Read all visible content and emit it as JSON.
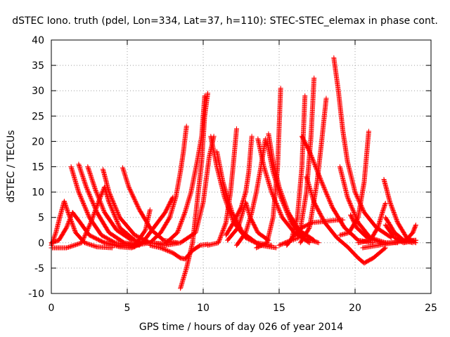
{
  "chart_data": {
    "type": "scatter",
    "title": "dSTEC Iono. truth (pdel, Lon=334, Lat=37, h=110): STEC-STEC_elemax in phase cont.",
    "xlabel": "GPS time / hours of day 026 of year 2014",
    "ylabel": "dSTEC  / TECUs",
    "xlim": [
      0,
      25
    ],
    "ylim": [
      -10,
      40
    ],
    "xticks": [
      0,
      5,
      10,
      15,
      20,
      25
    ],
    "yticks": [
      -10,
      -5,
      0,
      5,
      10,
      15,
      20,
      25,
      30,
      35,
      40
    ],
    "grid": true,
    "marker": "+",
    "color": "#ff0000",
    "series": [
      {
        "points": [
          [
            0.0,
            -0.5
          ],
          [
            0.3,
            2
          ],
          [
            0.6,
            5.5
          ],
          [
            0.85,
            8.2
          ],
          [
            1.1,
            6
          ],
          [
            1.6,
            2
          ],
          [
            2.2,
            0
          ],
          [
            3.0,
            -0.8
          ],
          [
            4.0,
            -1
          ]
        ]
      },
      {
        "points": [
          [
            0.0,
            0
          ],
          [
            0.5,
            0.5
          ],
          [
            1.0,
            3
          ],
          [
            1.4,
            6
          ],
          [
            1.9,
            4
          ],
          [
            2.5,
            1.5
          ],
          [
            3.5,
            0
          ],
          [
            4.5,
            -0.5
          ],
          [
            5.5,
            -0.8
          ]
        ]
      },
      {
        "points": [
          [
            0.0,
            -1
          ],
          [
            1.0,
            -1
          ],
          [
            2.0,
            0
          ],
          [
            2.6,
            4
          ],
          [
            3.1,
            8
          ],
          [
            3.5,
            11
          ],
          [
            3.8,
            8
          ],
          [
            4.5,
            3
          ],
          [
            5.5,
            0.5
          ]
        ]
      },
      {
        "points": [
          [
            1.3,
            15
          ],
          [
            1.8,
            10
          ],
          [
            2.5,
            5
          ],
          [
            3.3,
            1.5
          ],
          [
            4.2,
            0
          ],
          [
            5.0,
            -0.3
          ],
          [
            6.0,
            0
          ]
        ]
      },
      {
        "points": [
          [
            1.8,
            15.5
          ],
          [
            2.3,
            11
          ],
          [
            3.0,
            6
          ],
          [
            3.8,
            2
          ],
          [
            4.8,
            0
          ],
          [
            5.8,
            -0.5
          ]
        ]
      },
      {
        "points": [
          [
            2.4,
            15
          ],
          [
            2.9,
            10.5
          ],
          [
            3.5,
            6
          ],
          [
            4.3,
            2.5
          ],
          [
            5.3,
            0.5
          ],
          [
            6.3,
            0
          ]
        ]
      },
      {
        "points": [
          [
            3.4,
            14.5
          ],
          [
            3.8,
            10
          ],
          [
            4.5,
            5
          ],
          [
            5.5,
            1.5
          ],
          [
            6.5,
            0
          ],
          [
            7.5,
            -0.5
          ]
        ]
      },
      {
        "points": [
          [
            4.7,
            14.8
          ],
          [
            5.1,
            11
          ],
          [
            5.8,
            6.5
          ],
          [
            6.6,
            2.5
          ],
          [
            7.4,
            0.5
          ],
          [
            8.3,
            0
          ]
        ]
      },
      {
        "points": [
          [
            3.5,
            0
          ],
          [
            4.5,
            -0.8
          ],
          [
            5.3,
            -1
          ],
          [
            6.0,
            0
          ],
          [
            6.5,
            2
          ],
          [
            7.0,
            4
          ],
          [
            7.5,
            6
          ],
          [
            8.0,
            9
          ]
        ]
      },
      {
        "points": [
          [
            4.5,
            -0.5
          ],
          [
            5.5,
            -0.5
          ],
          [
            6.2,
            2.5
          ],
          [
            6.5,
            6.5
          ]
        ]
      },
      {
        "points": [
          [
            5.5,
            -0.5
          ],
          [
            6.5,
            0
          ],
          [
            7.2,
            2
          ],
          [
            7.8,
            5
          ],
          [
            8.2,
            9
          ],
          [
            8.5,
            14
          ],
          [
            8.7,
            18
          ],
          [
            8.9,
            23
          ]
        ]
      },
      {
        "points": [
          [
            6.5,
            0
          ],
          [
            7.5,
            -0.2
          ],
          [
            8.3,
            2
          ],
          [
            8.8,
            6
          ],
          [
            9.2,
            10
          ],
          [
            9.6,
            16
          ],
          [
            9.9,
            21
          ],
          [
            10.1,
            29
          ]
        ]
      },
      {
        "points": [
          [
            6.5,
            -0.5
          ],
          [
            7.2,
            -1
          ],
          [
            8.0,
            -2
          ],
          [
            8.5,
            -3
          ],
          [
            8.8,
            -3.2
          ],
          [
            9.3,
            -1.5
          ],
          [
            9.8,
            -0.5
          ],
          [
            10.3,
            -0.3
          ]
        ]
      },
      {
        "points": [
          [
            8.5,
            -9
          ],
          [
            8.9,
            -5
          ],
          [
            9.3,
            0
          ],
          [
            9.6,
            8
          ],
          [
            9.9,
            16
          ],
          [
            10.1,
            25
          ],
          [
            10.3,
            29.5
          ]
        ]
      },
      {
        "points": [
          [
            7.5,
            -0.5
          ],
          [
            8.5,
            0
          ],
          [
            9.5,
            2
          ],
          [
            10.0,
            8
          ],
          [
            10.4,
            17
          ],
          [
            10.7,
            21
          ]
        ]
      },
      {
        "points": [
          [
            10.5,
            21
          ],
          [
            10.9,
            15
          ],
          [
            11.4,
            9
          ],
          [
            12.0,
            4
          ],
          [
            12.8,
            1
          ],
          [
            13.8,
            -0.5
          ],
          [
            14.8,
            -1
          ]
        ]
      },
      {
        "points": [
          [
            10.9,
            18
          ],
          [
            11.3,
            12
          ],
          [
            11.9,
            6
          ],
          [
            12.6,
            2
          ],
          [
            13.5,
            0
          ],
          [
            14.5,
            -0.5
          ]
        ]
      },
      {
        "points": [
          [
            10.3,
            -0.5
          ],
          [
            11.0,
            0
          ],
          [
            11.5,
            4
          ],
          [
            11.8,
            10
          ],
          [
            12.0,
            16
          ],
          [
            12.2,
            22.5
          ]
        ]
      },
      {
        "points": [
          [
            12.2,
            -0.5
          ],
          [
            12.8,
            2
          ],
          [
            13.2,
            6
          ],
          [
            13.5,
            10
          ],
          [
            13.8,
            15
          ],
          [
            14.1,
            20.5
          ]
        ]
      },
      {
        "points": [
          [
            11.5,
            1.5
          ],
          [
            12.0,
            4
          ],
          [
            12.5,
            7
          ],
          [
            12.8,
            10
          ],
          [
            13.0,
            14
          ],
          [
            13.2,
            21
          ]
        ]
      },
      {
        "points": [
          [
            11.6,
            0.5
          ],
          [
            12.3,
            3
          ],
          [
            12.8,
            8
          ],
          [
            13.1,
            5
          ],
          [
            13.6,
            2
          ],
          [
            14.3,
            0.5
          ]
        ]
      },
      {
        "points": [
          [
            13.6,
            20.5
          ],
          [
            14.0,
            15
          ],
          [
            14.5,
            10
          ],
          [
            15.2,
            5
          ],
          [
            16.0,
            2
          ],
          [
            17.0,
            0
          ]
        ]
      },
      {
        "points": [
          [
            14.3,
            21.5
          ],
          [
            14.6,
            16
          ],
          [
            15.0,
            11
          ],
          [
            15.6,
            6
          ],
          [
            16.3,
            2.5
          ],
          [
            17.3,
            0.5
          ]
        ]
      },
      {
        "points": [
          [
            14.2,
            20
          ],
          [
            14.6,
            14
          ],
          [
            15.1,
            9
          ],
          [
            15.8,
            4
          ],
          [
            16.6,
            1
          ],
          [
            17.6,
            0
          ]
        ]
      },
      {
        "points": [
          [
            13.5,
            -1
          ],
          [
            14.2,
            0
          ],
          [
            14.6,
            5
          ],
          [
            14.9,
            15
          ],
          [
            15.1,
            30.5
          ]
        ]
      },
      {
        "points": [
          [
            15.0,
            -0.5
          ],
          [
            15.8,
            0.5
          ],
          [
            16.2,
            5
          ],
          [
            16.5,
            15
          ],
          [
            16.7,
            29
          ]
        ]
      },
      {
        "points": [
          [
            15.4,
            0
          ],
          [
            16.3,
            1
          ],
          [
            16.8,
            10
          ],
          [
            17.1,
            21
          ],
          [
            17.3,
            32.5
          ]
        ]
      },
      {
        "points": [
          [
            16.4,
            0
          ],
          [
            17.0,
            3
          ],
          [
            17.5,
            12
          ],
          [
            17.8,
            20
          ],
          [
            18.1,
            28.5
          ]
        ]
      },
      {
        "points": [
          [
            16.5,
            21
          ],
          [
            17.0,
            18
          ],
          [
            17.8,
            12
          ],
          [
            18.5,
            7
          ],
          [
            19.3,
            3
          ],
          [
            20.2,
            0.5
          ],
          [
            21.2,
            0
          ]
        ]
      },
      {
        "points": [
          [
            15.5,
            -0.5
          ],
          [
            16.0,
            1.5
          ],
          [
            16.5,
            3
          ],
          [
            17.2,
            4
          ],
          [
            18.0,
            4.2
          ],
          [
            18.8,
            4.5
          ],
          [
            19.2,
            4.5
          ]
        ]
      },
      {
        "points": [
          [
            18.6,
            36.5
          ],
          [
            18.9,
            30
          ],
          [
            19.2,
            22
          ],
          [
            19.5,
            16
          ],
          [
            20.0,
            10
          ],
          [
            20.6,
            6
          ],
          [
            21.4,
            3
          ],
          [
            22.4,
            1
          ]
        ]
      },
      {
        "points": [
          [
            19.0,
            15
          ],
          [
            19.5,
            9
          ],
          [
            20.2,
            4
          ],
          [
            21.0,
            1
          ],
          [
            22.0,
            0
          ]
        ]
      },
      {
        "points": [
          [
            16.8,
            13
          ],
          [
            17.3,
            8
          ],
          [
            18.0,
            4
          ],
          [
            18.8,
            1
          ],
          [
            19.5,
            -0.8
          ],
          [
            20.2,
            -3
          ],
          [
            20.6,
            -4
          ],
          [
            21.2,
            -3
          ],
          [
            22.0,
            -1
          ]
        ]
      },
      {
        "points": [
          [
            19.0,
            1.5
          ],
          [
            19.6,
            2
          ],
          [
            20.2,
            5
          ],
          [
            20.6,
            12
          ],
          [
            20.9,
            22
          ]
        ]
      },
      {
        "points": [
          [
            19.7,
            5.5
          ],
          [
            20.1,
            3
          ],
          [
            20.8,
            1
          ],
          [
            21.8,
            0
          ],
          [
            22.8,
            0
          ]
        ]
      },
      {
        "points": [
          [
            21.9,
            12.5
          ],
          [
            22.3,
            8
          ],
          [
            22.8,
            4
          ],
          [
            23.4,
            1
          ],
          [
            24.0,
            0
          ]
        ]
      },
      {
        "points": [
          [
            20.2,
            0
          ],
          [
            21.0,
            0.5
          ],
          [
            21.5,
            3
          ],
          [
            21.8,
            6
          ],
          [
            22.0,
            7.8
          ]
        ]
      },
      {
        "points": [
          [
            22.0,
            3.5
          ],
          [
            22.6,
            1
          ],
          [
            23.2,
            0
          ],
          [
            24.0,
            0.5
          ]
        ]
      },
      {
        "points": [
          [
            22.0,
            5
          ],
          [
            22.6,
            2
          ],
          [
            23.2,
            0.5
          ],
          [
            23.8,
            0
          ]
        ]
      },
      {
        "points": [
          [
            22.8,
            1
          ],
          [
            23.3,
            0.3
          ],
          [
            23.8,
            2
          ],
          [
            24.0,
            3.5
          ]
        ]
      },
      {
        "points": [
          [
            20.5,
            -1
          ],
          [
            21.5,
            -0.5
          ],
          [
            22.5,
            0
          ],
          [
            23.5,
            0.5
          ],
          [
            24.0,
            0.5
          ]
        ]
      }
    ]
  }
}
